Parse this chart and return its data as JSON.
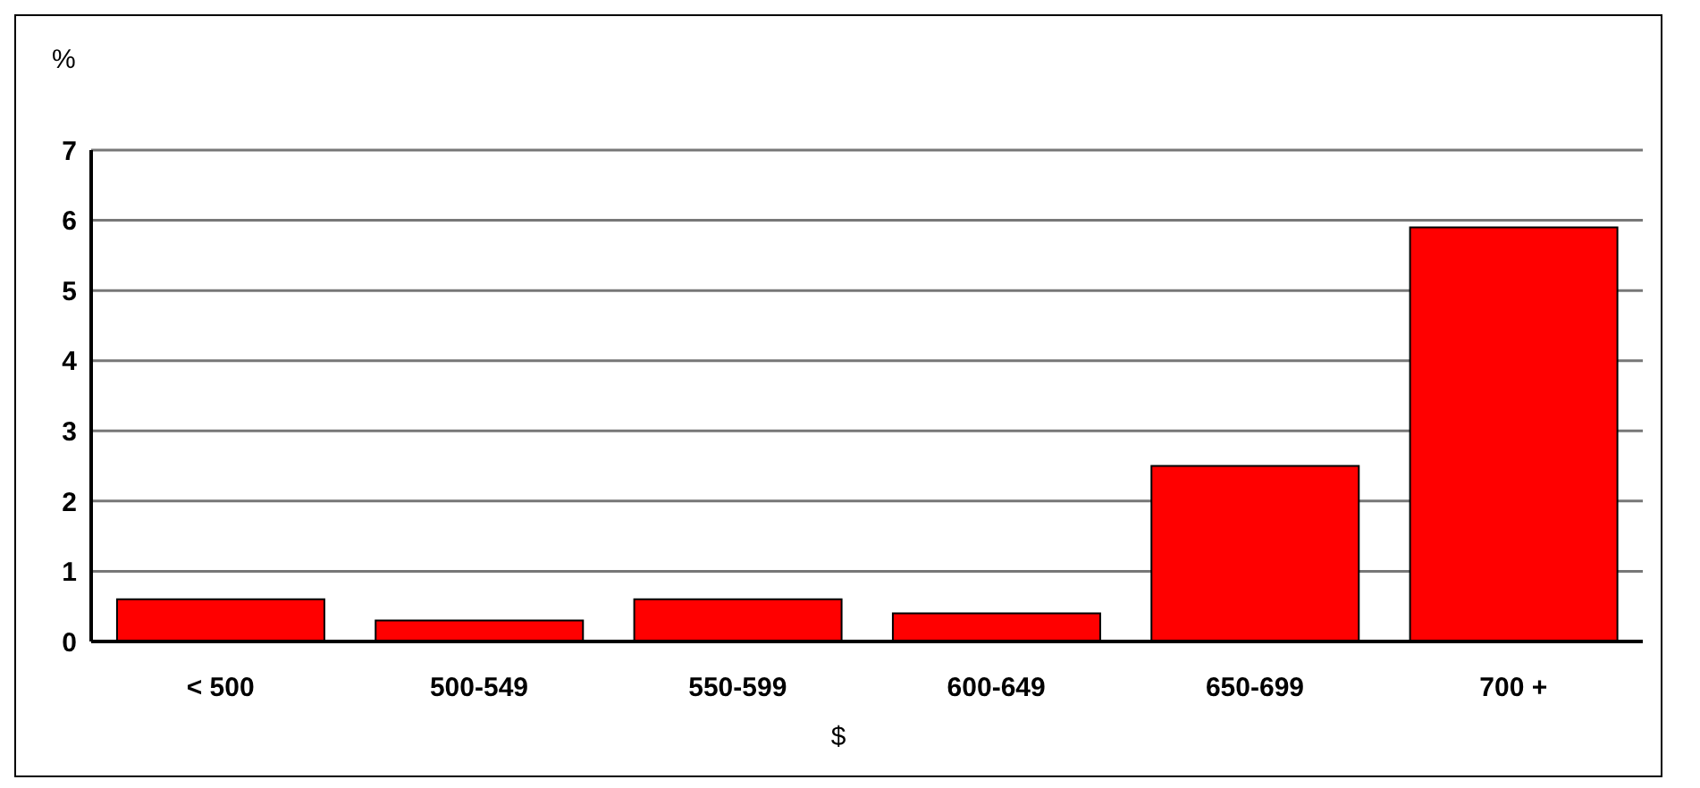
{
  "chart_data": {
    "type": "bar",
    "ylabel": "%",
    "xlabel": "$",
    "categories": [
      "< 500",
      "500-549",
      "550-599",
      "600-649",
      "650-699",
      "700 +"
    ],
    "values": [
      0.6,
      0.3,
      0.6,
      0.4,
      2.5,
      5.9
    ],
    "color": "#ff0000",
    "ylim": [
      0,
      7
    ],
    "yticks": [
      0,
      1,
      2,
      3,
      4,
      5,
      6,
      7
    ],
    "grid": "y",
    "legend": false
  }
}
